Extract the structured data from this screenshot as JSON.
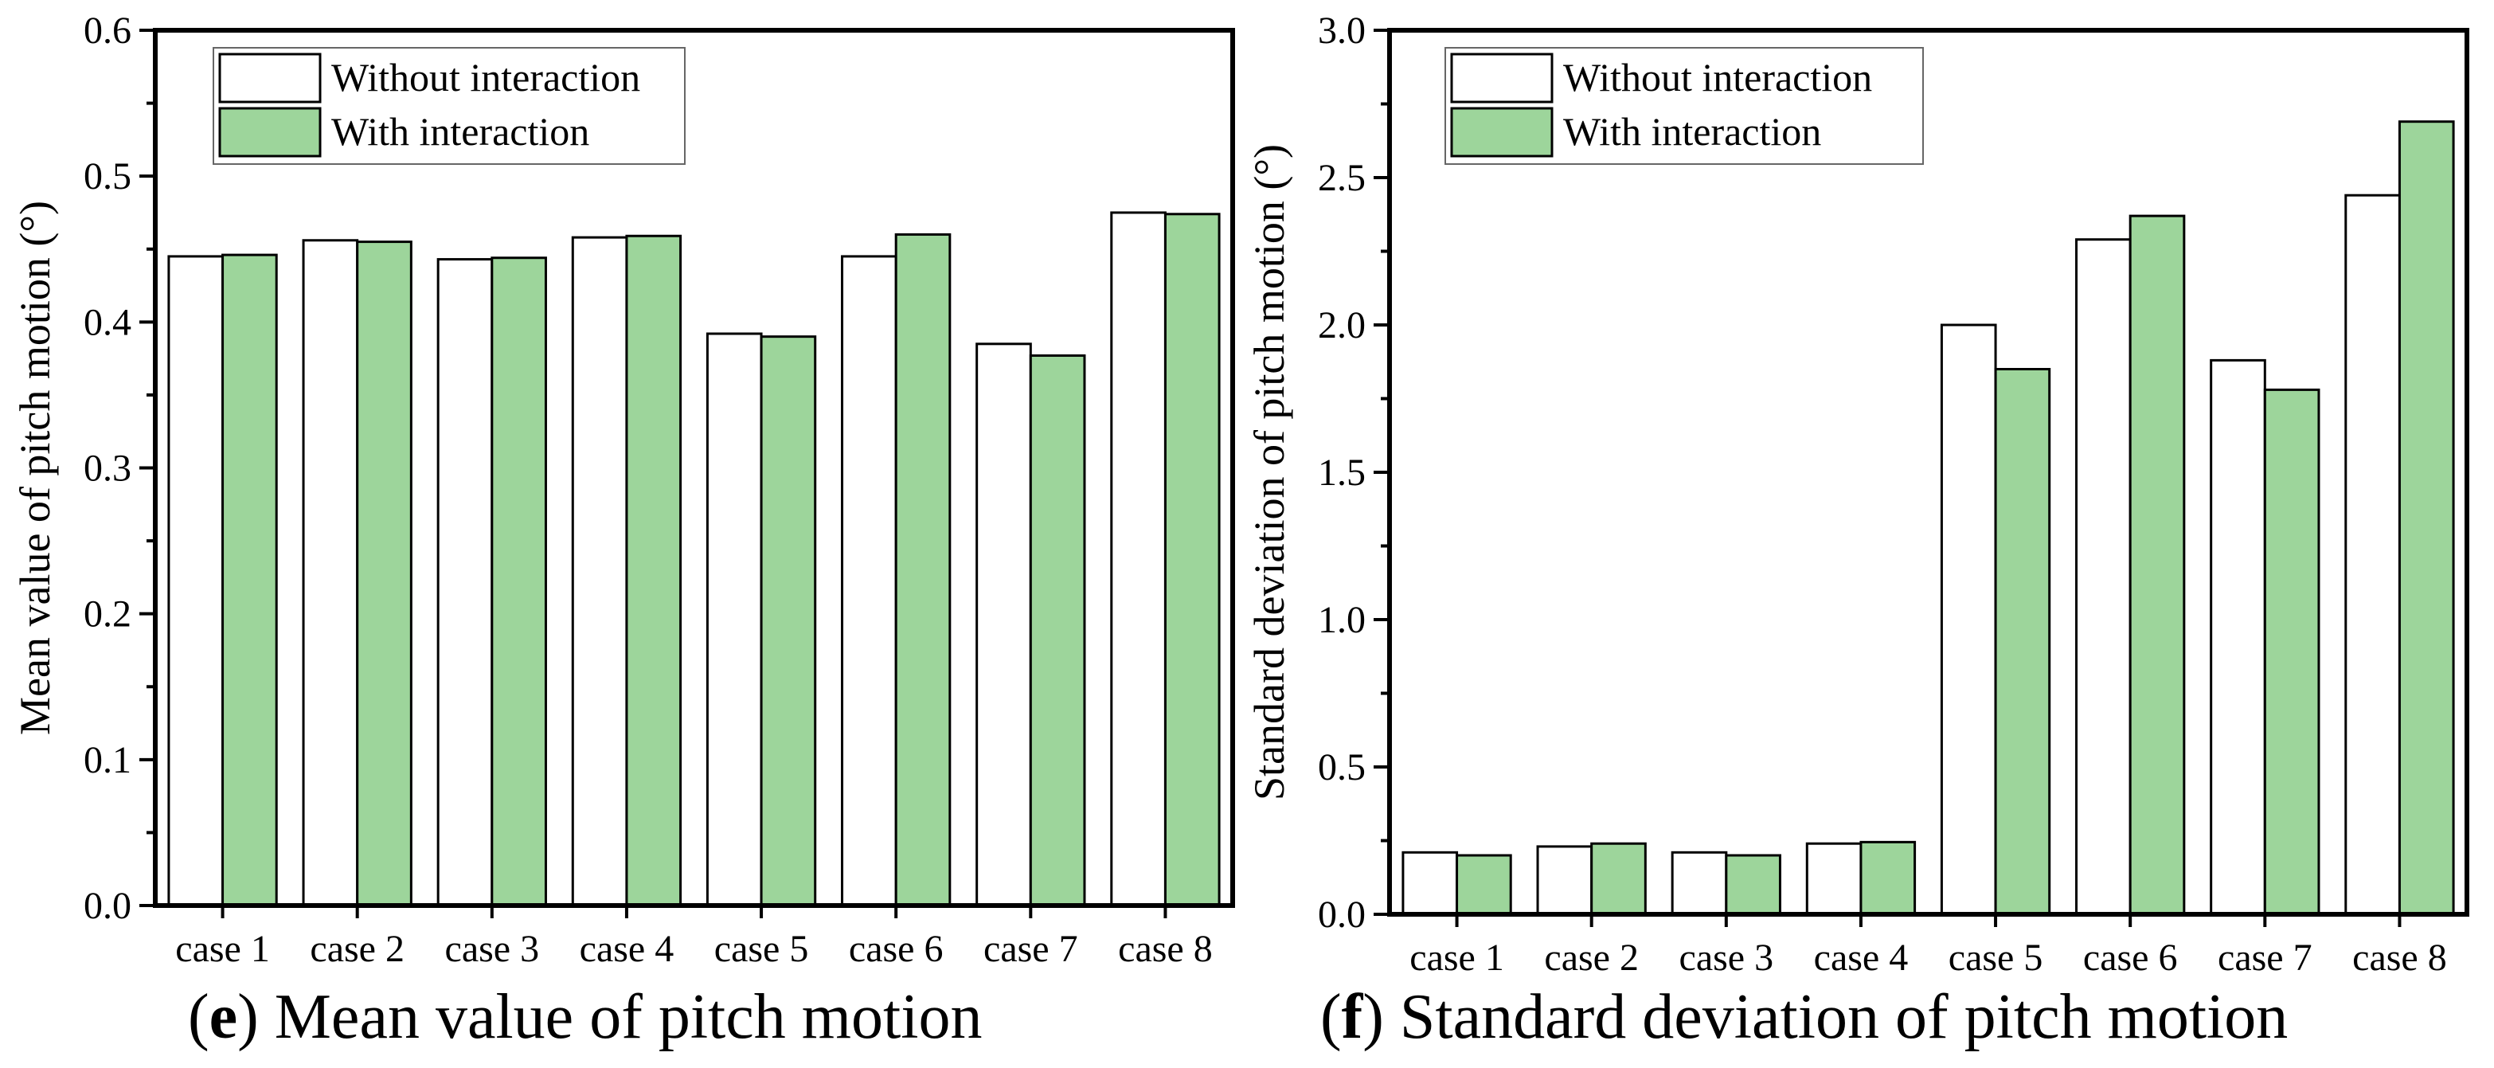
{
  "colors": {
    "without": "#ffffff",
    "with": "#9dd59b",
    "stroke": "#000000"
  },
  "chart_data": [
    {
      "id": "e",
      "type": "bar",
      "title": "Mean value of pitch motion",
      "caption_letter": "e",
      "caption_open": "(",
      "caption_close": ")",
      "xlabel": "",
      "ylabel": "Mean value of pitch motion (°)",
      "ylim": [
        0,
        0.6
      ],
      "yticks": [
        "0.0",
        "0.1",
        "0.2",
        "0.3",
        "0.4",
        "0.5",
        "0.6"
      ],
      "ytick_values": [
        0,
        0.1,
        0.2,
        0.3,
        0.4,
        0.5,
        0.6
      ],
      "categories": [
        "case 1",
        "case 2",
        "case 3",
        "case 4",
        "case 5",
        "case 6",
        "case 7",
        "case 8"
      ],
      "legend_position": "top-left",
      "series": [
        {
          "name": "Without interaction",
          "values": [
            0.445,
            0.456,
            0.443,
            0.458,
            0.392,
            0.445,
            0.385,
            0.475
          ]
        },
        {
          "name": "With interaction",
          "values": [
            0.446,
            0.455,
            0.444,
            0.459,
            0.39,
            0.46,
            0.377,
            0.474
          ]
        }
      ]
    },
    {
      "id": "f",
      "type": "bar",
      "title": "Standard deviation of pitch motion",
      "caption_letter": "f",
      "caption_open": "(",
      "caption_close": ")",
      "xlabel": "",
      "ylabel": "Standard deviation of pitch motion (°)",
      "ylim": [
        0,
        3.0
      ],
      "yticks": [
        "0.0",
        "0.5",
        "1.0",
        "1.5",
        "2.0",
        "2.5",
        "3.0"
      ],
      "ytick_values": [
        0,
        0.5,
        1.0,
        1.5,
        2.0,
        2.5,
        3.0
      ],
      "categories": [
        "case 1",
        "case 2",
        "case 3",
        "case 4",
        "case 5",
        "case 6",
        "case 7",
        "case 8"
      ],
      "legend_position": "top-left",
      "series": [
        {
          "name": "Without interaction",
          "values": [
            0.21,
            0.23,
            0.21,
            0.24,
            2.0,
            2.29,
            1.88,
            2.44
          ]
        },
        {
          "name": "With interaction",
          "values": [
            0.2,
            0.24,
            0.2,
            0.245,
            1.85,
            2.37,
            1.78,
            2.69
          ]
        }
      ]
    }
  ]
}
